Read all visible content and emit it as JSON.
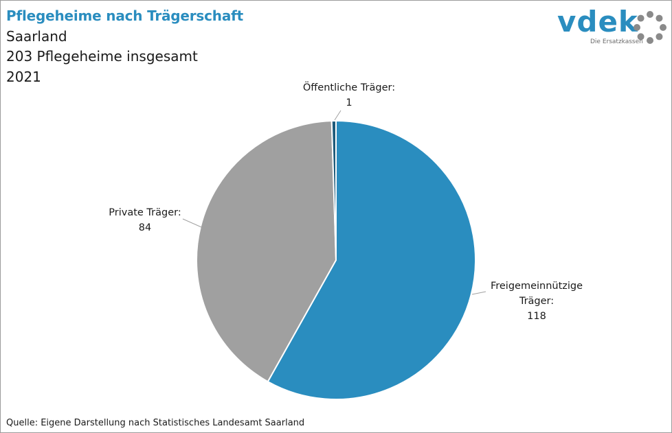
{
  "header": {
    "title": "Pflegeheime nach Trägerschaft",
    "subtitle_1": "Saarland",
    "subtitle_2": "203 Pflegeheime insgesamt",
    "subtitle_3": "2021"
  },
  "logo": {
    "wordmark": "vdek",
    "tagline": "Die Ersatzkassen",
    "color": "#2a8dbf",
    "ring_color": "#8a8a8a"
  },
  "chart_data": {
    "type": "pie",
    "total": 203,
    "start_angle_deg": 0,
    "direction": "clockwise",
    "slices": [
      {
        "label_line1": "Freigemeinnützige",
        "label_line2": "Träger:",
        "value": 118,
        "color": "#2a8dbf"
      },
      {
        "label_line1": "Private Träger:",
        "label_line2": "",
        "value": 84,
        "color": "#a0a0a0"
      },
      {
        "label_line1": "Öffentliche Träger:",
        "label_line2": "",
        "value": 1,
        "color": "#1d5a7a"
      }
    ]
  },
  "footer": {
    "source": "Quelle: Eigene Darstellung nach Statistisches Landesamt Saarland"
  }
}
